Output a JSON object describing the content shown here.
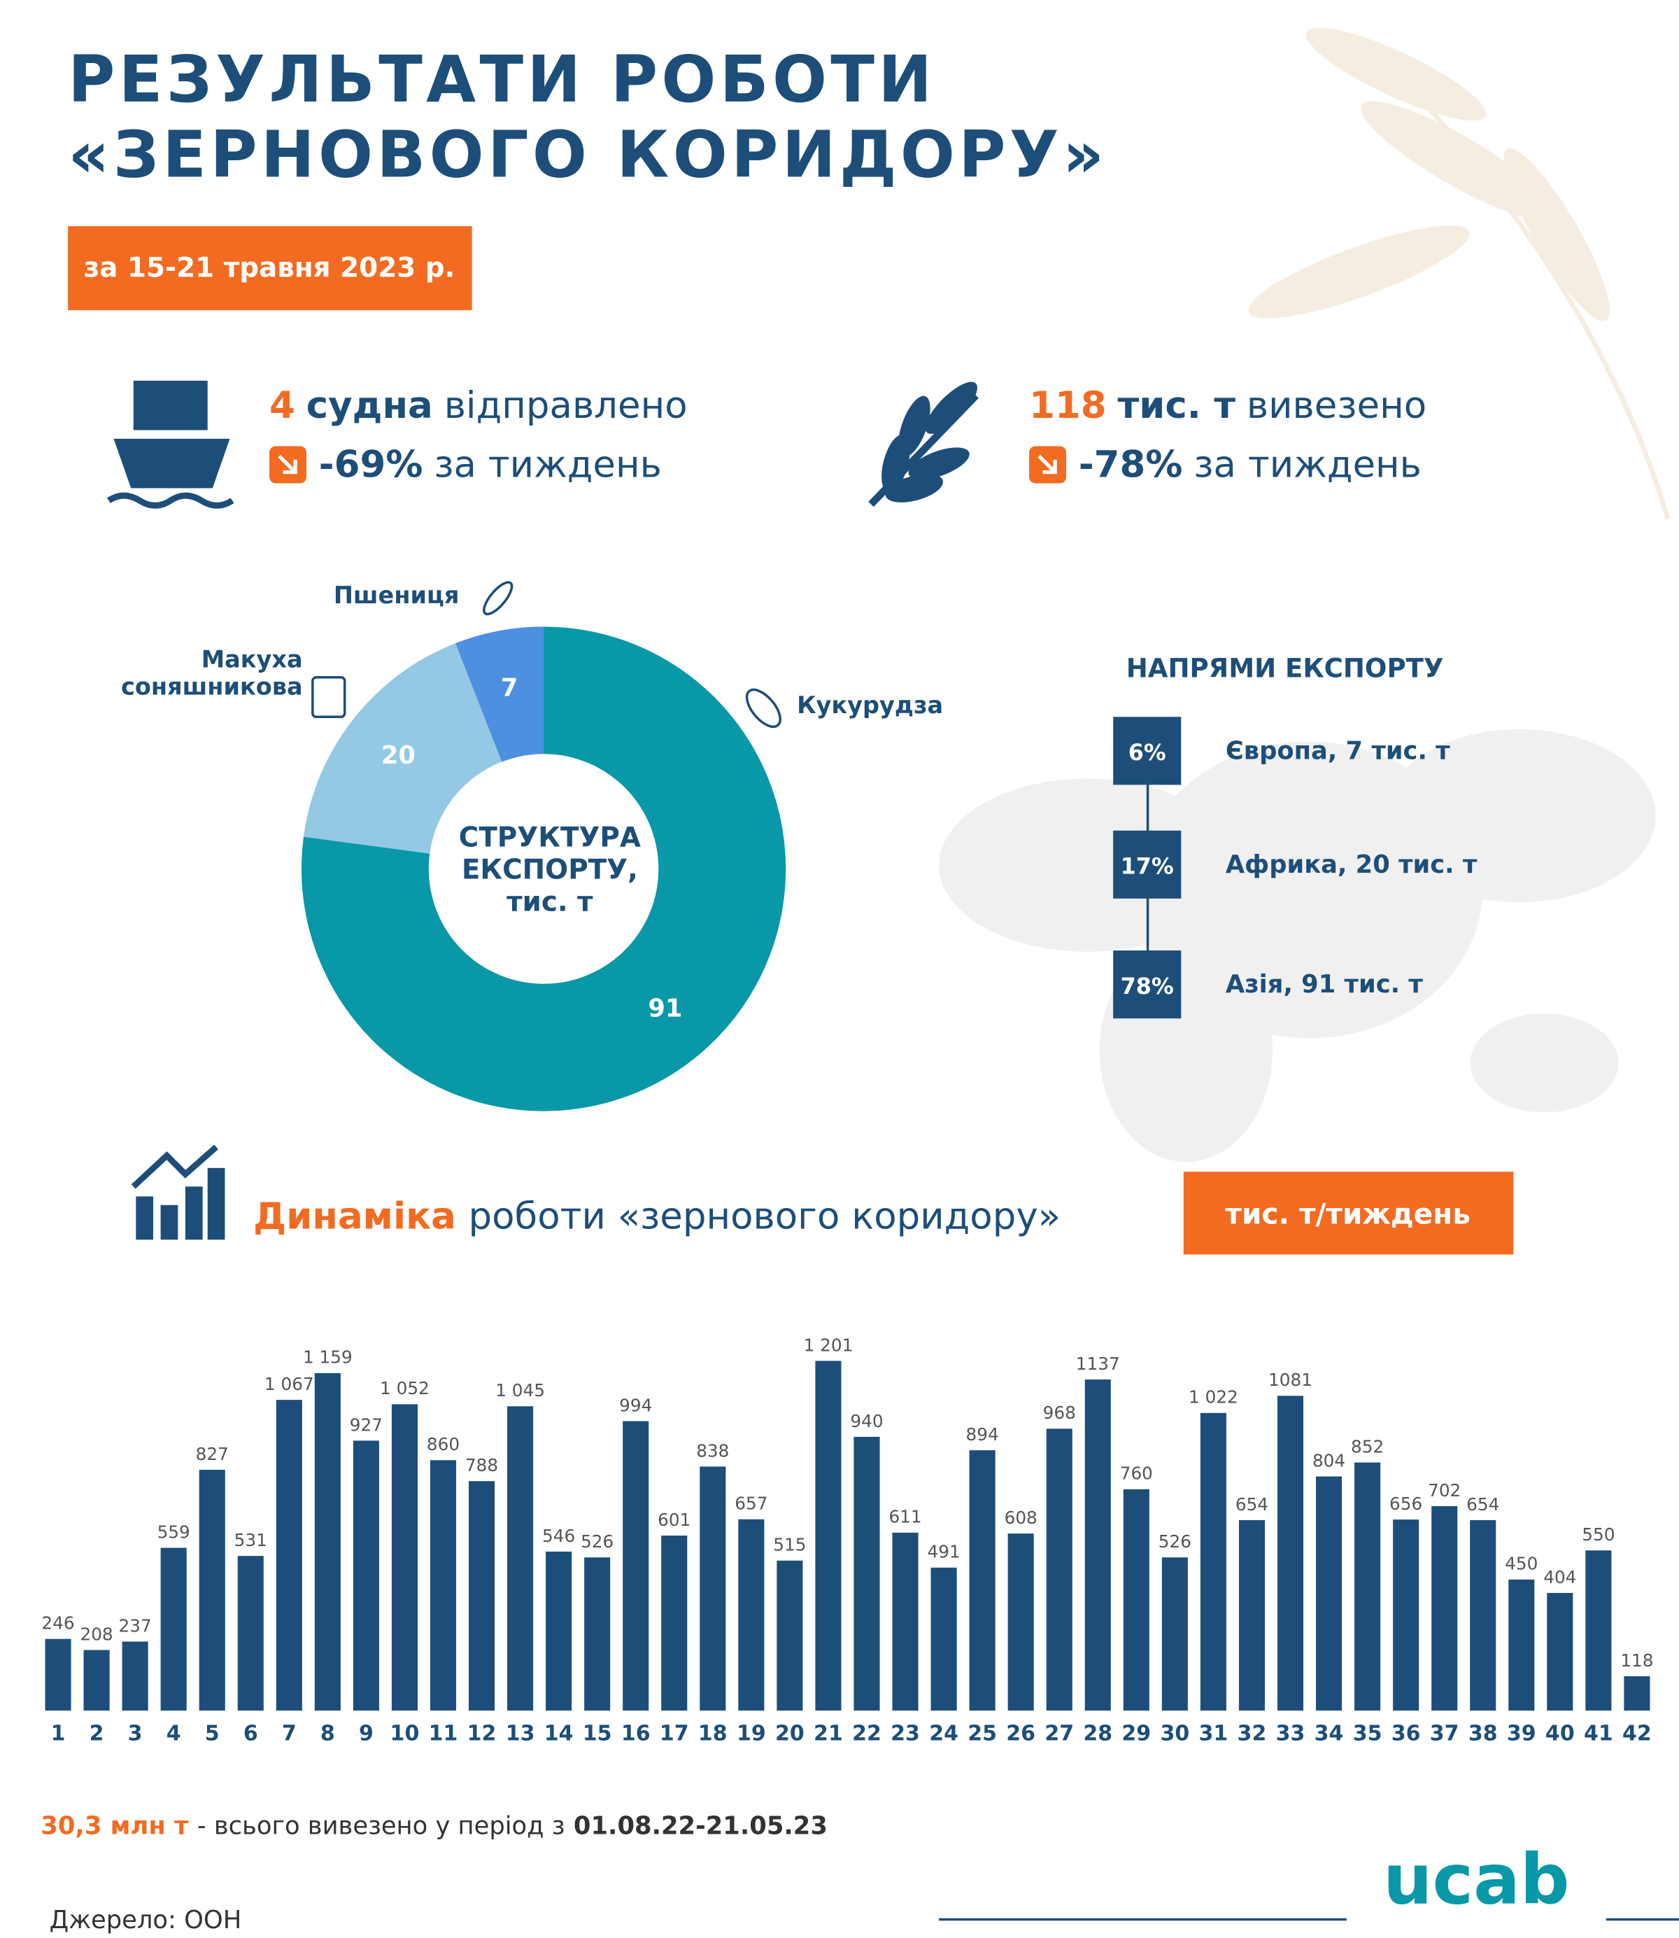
{
  "title_lines": [
    "РЕЗУЛЬТАТИ РОБОТИ",
    "«ЗЕРНОВОГО КОРИДОРУ»"
  ],
  "period": "за 15-21 травня 2023 р.",
  "stats": [
    {
      "number": "4",
      "unit": "судна",
      "verb": "відправлено",
      "change": "-69%",
      "change_text": "за тиждень"
    },
    {
      "number": "118",
      "unit": "тис. т",
      "verb": "вивезено",
      "change": "-78%",
      "change_text": "за тиждень"
    }
  ],
  "directions": {
    "title": "НАПРЯМИ ЕКСПОРТУ",
    "items": [
      {
        "share": "6%",
        "label": "Європа, 7 тис. т"
      },
      {
        "share": "17%",
        "label": "Африка, 20 тис. т"
      },
      {
        "share": "78%",
        "label": "Азія, 91 тис. т"
      }
    ]
  },
  "chart_data": [
    {
      "type": "pie",
      "title_lines": [
        "СТРУКТУРА",
        "ЕКСПОРТУ,",
        "тис. т"
      ],
      "categories": [
        "Кукурудза",
        "Макуха соняшникова",
        "Пшениця"
      ],
      "values": [
        91,
        20,
        7
      ],
      "colors": [
        "#0898a8",
        "#93c9e4",
        "#4d8fe0"
      ]
    },
    {
      "type": "bar",
      "title_highlight": "Динаміка",
      "title": "роботи «зернового коридору»",
      "unit": "тис. т/тиждень",
      "color": "#1d4e79",
      "x": [
        1,
        2,
        3,
        4,
        5,
        6,
        7,
        8,
        9,
        10,
        11,
        12,
        13,
        14,
        15,
        16,
        17,
        18,
        19,
        20,
        21,
        22,
        23,
        24,
        25,
        26,
        27,
        28,
        29,
        30,
        31,
        32,
        33,
        34,
        35,
        36,
        37,
        38,
        39,
        40,
        41,
        42
      ],
      "values": [
        246,
        208,
        237,
        559,
        827,
        531,
        1067,
        1159,
        927,
        1052,
        860,
        788,
        1045,
        546,
        526,
        994,
        601,
        838,
        657,
        515,
        1201,
        940,
        611,
        491,
        894,
        608,
        968,
        1137,
        760,
        526,
        1022,
        654,
        1081,
        804,
        852,
        656,
        702,
        654,
        450,
        404,
        550,
        118
      ],
      "value_labels": [
        "246",
        "208",
        "237",
        "559",
        "827",
        "531",
        "1 067",
        "1 159",
        "927",
        "1 052",
        "860",
        "788",
        "1 045",
        "546",
        "526",
        "994",
        "601",
        "838",
        "657",
        "515",
        "1 201",
        "940",
        "611",
        "491",
        "894",
        "608",
        "968",
        "1137",
        "760",
        "526",
        "1 022",
        "654",
        "1081",
        "804",
        "852",
        "656",
        "702",
        "654",
        "450",
        "404",
        "550",
        "118"
      ]
    }
  ],
  "footer": {
    "total": "30,3 млн т",
    "text": "- всього вивезено у період з",
    "dates": "01.08.22-21.05.23"
  },
  "source": "Джерело: ООН",
  "logo": "ucab"
}
